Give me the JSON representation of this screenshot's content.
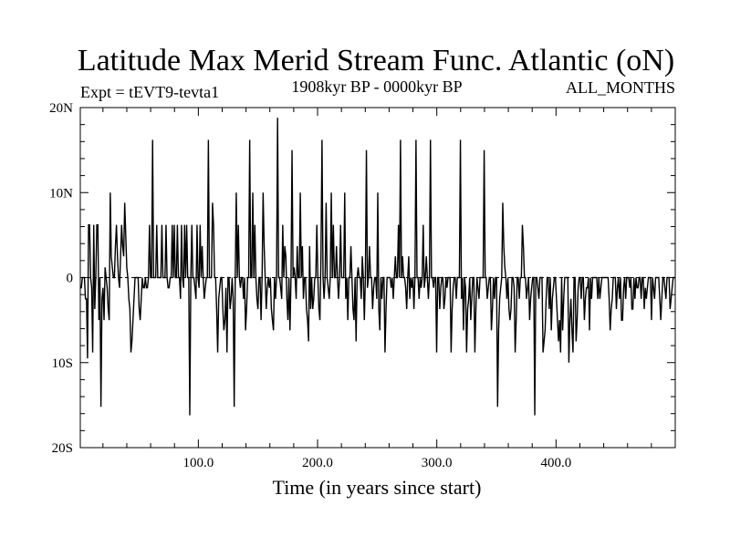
{
  "chart_data": {
    "type": "line",
    "title": "Latitude Max Merid Stream Func. Atlantic (oN)",
    "left_subtitle": "Expt = tEVT9-tevta1",
    "center_subtitle": "1908kyr BP - 0000kyr BP",
    "right_subtitle": "ALL_MONTHS",
    "xlabel": "Time (in years since start)",
    "ylabel": "",
    "xlim": [
      1,
      500
    ],
    "ylim": [
      -20,
      20
    ],
    "x_ticks": [
      {
        "value": 100,
        "label": "100.0"
      },
      {
        "value": 200,
        "label": "200.0"
      },
      {
        "value": 300,
        "label": "300.0"
      },
      {
        "value": 400,
        "label": "400.0"
      }
    ],
    "y_ticks": [
      {
        "value": 20,
        "label": "20N"
      },
      {
        "value": 10,
        "label": "10N"
      },
      {
        "value": 0,
        "label": "0"
      },
      {
        "value": -10,
        "label": "10S"
      },
      {
        "value": -20,
        "label": "20S"
      }
    ],
    "zero_line": true,
    "series": [
      {
        "name": "latitude_max_merid_stream_func",
        "values": [
          -1.2,
          -1.2,
          0,
          0,
          0,
          -2.5,
          -2.5,
          -9.5,
          6.2,
          6.2,
          0,
          -1.2,
          -8.8,
          6.2,
          -3.7,
          0,
          6.2,
          6.2,
          -5,
          0,
          -15.2,
          -2.5,
          -1.2,
          -5,
          1.2,
          0,
          -1.2,
          -3.7,
          -5,
          10,
          2.5,
          1.2,
          0,
          0,
          3.7,
          6.2,
          2.5,
          0,
          -1.2,
          2.5,
          6.2,
          3.7,
          2.5,
          8.8,
          5,
          1.2,
          0,
          -2.5,
          -3.7,
          -8.8,
          -7.5,
          -5,
          -2.5,
          0,
          0,
          0,
          0,
          -3.7,
          -5,
          -2.5,
          0,
          -1.2,
          -1.2,
          0,
          -1.2,
          -1.2,
          0,
          6.2,
          0,
          0,
          16.2,
          0,
          0,
          0,
          6.2,
          0,
          0,
          0,
          0,
          6.2,
          0,
          0,
          0,
          6.2,
          0,
          -1.2,
          -1.2,
          0,
          0,
          6.2,
          0,
          6.2,
          0,
          0,
          6.2,
          0,
          0,
          -2.5,
          6.2,
          0,
          -1.2,
          6.2,
          0,
          6.2,
          0,
          0,
          -16.2,
          0,
          6.2,
          0,
          0,
          -1.2,
          -2.5,
          6.2,
          0,
          -1.2,
          6.2,
          0,
          3.7,
          0,
          -2.5,
          -1.2,
          0,
          0,
          16.2,
          0,
          0,
          0,
          8.8,
          6.2,
          0,
          0,
          -3.7,
          -8.8,
          -2.5,
          -1.2,
          0,
          0,
          -3.7,
          -6.2,
          -5,
          -1.2,
          -8.8,
          0,
          0,
          -3.7,
          -2.5,
          0,
          -2.5,
          -15.2,
          0,
          10,
          0,
          6.2,
          0,
          -1.2,
          0,
          0,
          -2.5,
          0,
          -6.2,
          -3.7,
          0,
          0,
          16.2,
          0,
          0,
          10,
          0,
          6.2,
          0,
          -2.5,
          -3.7,
          0,
          0,
          -5,
          0,
          10,
          3.7,
          0,
          -3.7,
          -1.2,
          0,
          -1.2,
          0,
          -3.7,
          -5,
          -6.2,
          0,
          -2.5,
          0,
          18.8,
          0,
          0,
          -1.2,
          -2.5,
          6.2,
          0,
          3.7,
          2.5,
          -2.5,
          -5,
          0,
          -6.2,
          0,
          15,
          0,
          1.2,
          0,
          -2.5,
          3.7,
          0,
          0,
          10,
          0,
          3.7,
          -2.5,
          0,
          0,
          -3.7,
          -5,
          -7.5,
          3.7,
          -3.7,
          0,
          -3.7,
          -2.5,
          0,
          0,
          6.2,
          0,
          -3.7,
          -5,
          2.5,
          16.2,
          0,
          -2.5,
          0,
          8.8,
          0,
          -1.2,
          -2.5,
          0,
          10,
          0,
          6.2,
          0,
          0,
          3.7,
          0,
          -2.5,
          0,
          6.2,
          0,
          0,
          0,
          10,
          -2.5,
          0,
          -5,
          0,
          0,
          3.7,
          0,
          -3.7,
          -5,
          0,
          -7.5,
          0,
          1.2,
          0,
          0,
          -2.5,
          2.5,
          0,
          -5,
          0,
          15,
          -1.2,
          0,
          3.7,
          0,
          0,
          -3.7,
          -1.2,
          0,
          0,
          -2.5,
          10,
          -3.7,
          -6.2,
          0,
          -2.5,
          0,
          0,
          -8.8,
          -3.7,
          0,
          0,
          0,
          0,
          -1.2,
          0,
          -2.5,
          0,
          2.5,
          0,
          0,
          6.2,
          0,
          16.2,
          0,
          2.5,
          0,
          0,
          -1.2,
          -3.7,
          0,
          2.5,
          -2.5,
          0,
          -1.2,
          0,
          -3.7,
          0,
          16.2,
          0,
          0,
          -2.5,
          0,
          -1.2,
          0,
          6.2,
          -1.2,
          0,
          2.5,
          0,
          -2.5,
          0,
          16.2,
          0,
          0,
          -1.2,
          0,
          0,
          -8.8,
          0,
          0,
          -3.7,
          -1.2,
          0,
          0,
          -3.7,
          -2.5,
          0,
          -1.2,
          0,
          0,
          0,
          -8.8,
          -3.7,
          -1.2,
          0,
          0,
          -2.5,
          0,
          0,
          0,
          16.2,
          -2.5,
          0,
          -6.2,
          0,
          -1.2,
          -8.8,
          -3.7,
          -2.5,
          0,
          -5,
          -2.5,
          0,
          0,
          -8.8,
          -3.7,
          0,
          -1.2,
          -2.5,
          0,
          0,
          0,
          0,
          15,
          0,
          0,
          -2.5,
          -1.2,
          0,
          0,
          -6.2,
          -3.7,
          0,
          -2.5,
          0,
          0,
          -15.2,
          -6.2,
          -2.5,
          -1.2,
          0,
          8.8,
          3.7,
          1.2,
          0,
          -2.5,
          0,
          -3.7,
          -5,
          -3.7,
          0,
          0,
          -1.2,
          -8.8,
          -5,
          0,
          0,
          -2.5,
          0,
          0,
          6.2,
          3.7,
          0,
          0,
          -2.5,
          -1.2,
          0,
          -5,
          -2.5,
          -1.2,
          0,
          0,
          -16.2,
          0,
          0,
          -1.2,
          -2.5,
          0,
          0,
          0,
          -8.8,
          -7.5,
          -6.2,
          -2.5,
          0,
          0,
          -3.7,
          0,
          -6.2,
          -2.5,
          -1.2,
          0,
          0,
          -2.5,
          -5,
          -7.5,
          -5,
          -8.8,
          0,
          -6.2,
          -2.5,
          0,
          0,
          0,
          0,
          -10,
          -5,
          -2.5,
          -6.2,
          -8.8,
          0,
          0,
          -7.5,
          -5,
          -1.2,
          0,
          0,
          -2.5,
          0,
          0,
          -5,
          -2.5,
          -1.2,
          -1.2,
          0,
          -6.2,
          0,
          -2.5,
          0,
          0,
          0,
          0,
          0,
          -2.5,
          0,
          -2.5,
          -1.2,
          0,
          0,
          0,
          0,
          0,
          0,
          0,
          -2.5,
          -6.2,
          -3.7,
          -2.5,
          0,
          0,
          0,
          -3.7,
          -1.2,
          0,
          -2.5,
          0,
          -5,
          -5,
          -1.2,
          0,
          -2.5,
          0,
          0,
          0,
          -1.2,
          0,
          -3.7,
          -3.7,
          0,
          -2.5,
          0,
          -1.2,
          -1.2,
          0,
          0,
          -2.5,
          0,
          0,
          -3.7,
          -1.2,
          -2.5,
          -1.2,
          0,
          0,
          0,
          -5,
          0,
          -1.2,
          -2.5,
          0,
          0,
          0,
          0,
          -2.5,
          -5,
          -2.5,
          0,
          0,
          -1.2,
          -2.5,
          0,
          0,
          0,
          -3.7,
          -2.5,
          -1.2,
          0,
          0,
          0
        ]
      }
    ]
  }
}
